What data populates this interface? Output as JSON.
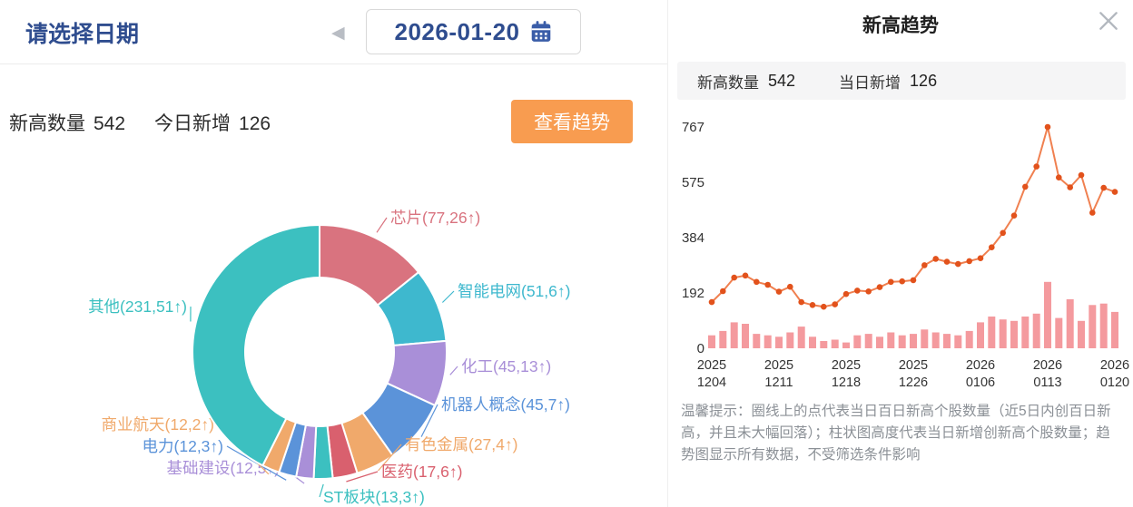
{
  "left_panel": {
    "date_picker": {
      "label": "请选择日期",
      "prev_arrow": "◀",
      "date_value": "2026-01-20"
    },
    "stats": {
      "high_count_label": "新高数量",
      "high_count_value": "542",
      "new_today_label": "今日新增",
      "new_today_value": "126"
    },
    "view_trend_button": "查看趋势"
  },
  "modal": {
    "title": "新高趋势",
    "stats": {
      "high_count_label": "新高数量",
      "high_count_value": "542",
      "new_today_label": "当日新增",
      "new_today_value": "126"
    },
    "footer_note": "温馨提示：圈线上的点代表当日百日新高个股数量（近5日内创百日新高，并且未大幅回落）；柱状图高度代表当日新增创新高个股数量；趋势图显示所有数据，不受筛选条件影响"
  },
  "icons": {
    "prev_arrow": "left-triangle",
    "calendar": "calendar-grid",
    "close": "x-cross"
  },
  "colors": {
    "accent_blue": "#2f4d8f",
    "button_orange": "#f89c50",
    "trend_line": "#f08050",
    "trend_point": "#e2521c",
    "trend_bar": "#f49a9e"
  },
  "chart_data": [
    {
      "type": "pie",
      "donut": true,
      "total": 542,
      "series": [
        {
          "name": "芯片",
          "value": 77,
          "increase": 26,
          "label": "芯片(77,26↑)",
          "color": "#d9737f"
        },
        {
          "name": "智能电网",
          "value": 51,
          "increase": 6,
          "label": "智能电网(51,6↑)",
          "color": "#3eb8ce"
        },
        {
          "name": "化工",
          "value": 45,
          "increase": 13,
          "label": "化工(45,13↑)",
          "color": "#a98fd8"
        },
        {
          "name": "机器人概念",
          "value": 45,
          "increase": 7,
          "label": "机器人概念(45,7↑)",
          "color": "#5b93d9"
        },
        {
          "name": "有色金属",
          "value": 27,
          "increase": 4,
          "label": "有色金属(27,4↑)",
          "color": "#f0a96b"
        },
        {
          "name": "医药",
          "value": 17,
          "increase": 6,
          "label": "医药(17,6↑)",
          "color": "#d9606e"
        },
        {
          "name": "ST板块",
          "value": 13,
          "increase": 3,
          "label": "ST板块(13,3↑)",
          "color": "#3cc0c0"
        },
        {
          "name": "基础建设",
          "value": 12,
          "increase": 5,
          "label": "基础建设(12,5↑)",
          "color": "#a98fd8"
        },
        {
          "name": "电力",
          "value": 12,
          "increase": 3,
          "label": "电力(12,3↑)",
          "color": "#5b93d9"
        },
        {
          "name": "商业航天",
          "value": 12,
          "increase": 2,
          "label": "商业航天(12,2↑)",
          "color": "#f0a96b"
        },
        {
          "name": "其他",
          "value": 231,
          "increase": 51,
          "label": "其他(231,51↑)",
          "color": "#3cc0c0"
        }
      ]
    },
    {
      "type": "line",
      "title": "新高趋势",
      "y_ticks": [
        0,
        192,
        384,
        575,
        767
      ],
      "y_max": 767,
      "x_tick_labels": [
        {
          "index": 0,
          "line1": "2025",
          "line2": "1204"
        },
        {
          "index": 6,
          "line1": "2025",
          "line2": "1211"
        },
        {
          "index": 12,
          "line1": "2025",
          "line2": "1218"
        },
        {
          "index": 18,
          "line1": "2025",
          "line2": "1226"
        },
        {
          "index": 24,
          "line1": "2026",
          "line2": "0106"
        },
        {
          "index": 30,
          "line1": "2026",
          "line2": "0113"
        },
        {
          "index": 36,
          "line1": "2026",
          "line2": "0120"
        }
      ],
      "series": [
        {
          "name": "当日百日新高个股数量",
          "type": "line",
          "color": "#f08050",
          "point_color": "#e2521c",
          "values": [
            160,
            198,
            245,
            252,
            230,
            220,
            196,
            213,
            160,
            150,
            144,
            152,
            188,
            200,
            197,
            212,
            230,
            232,
            236,
            288,
            310,
            300,
            292,
            302,
            312,
            350,
            400,
            460,
            560,
            630,
            767,
            592,
            558,
            600,
            470,
            556,
            542
          ]
        },
        {
          "name": "当日新增创新高个股数量",
          "type": "bar",
          "color": "#f49a9e",
          "values": [
            45,
            60,
            90,
            85,
            50,
            45,
            40,
            55,
            75,
            40,
            25,
            30,
            20,
            45,
            50,
            40,
            55,
            45,
            50,
            65,
            55,
            50,
            45,
            60,
            90,
            110,
            100,
            95,
            110,
            120,
            230,
            105,
            170,
            95,
            150,
            155,
            126
          ]
        }
      ]
    }
  ]
}
